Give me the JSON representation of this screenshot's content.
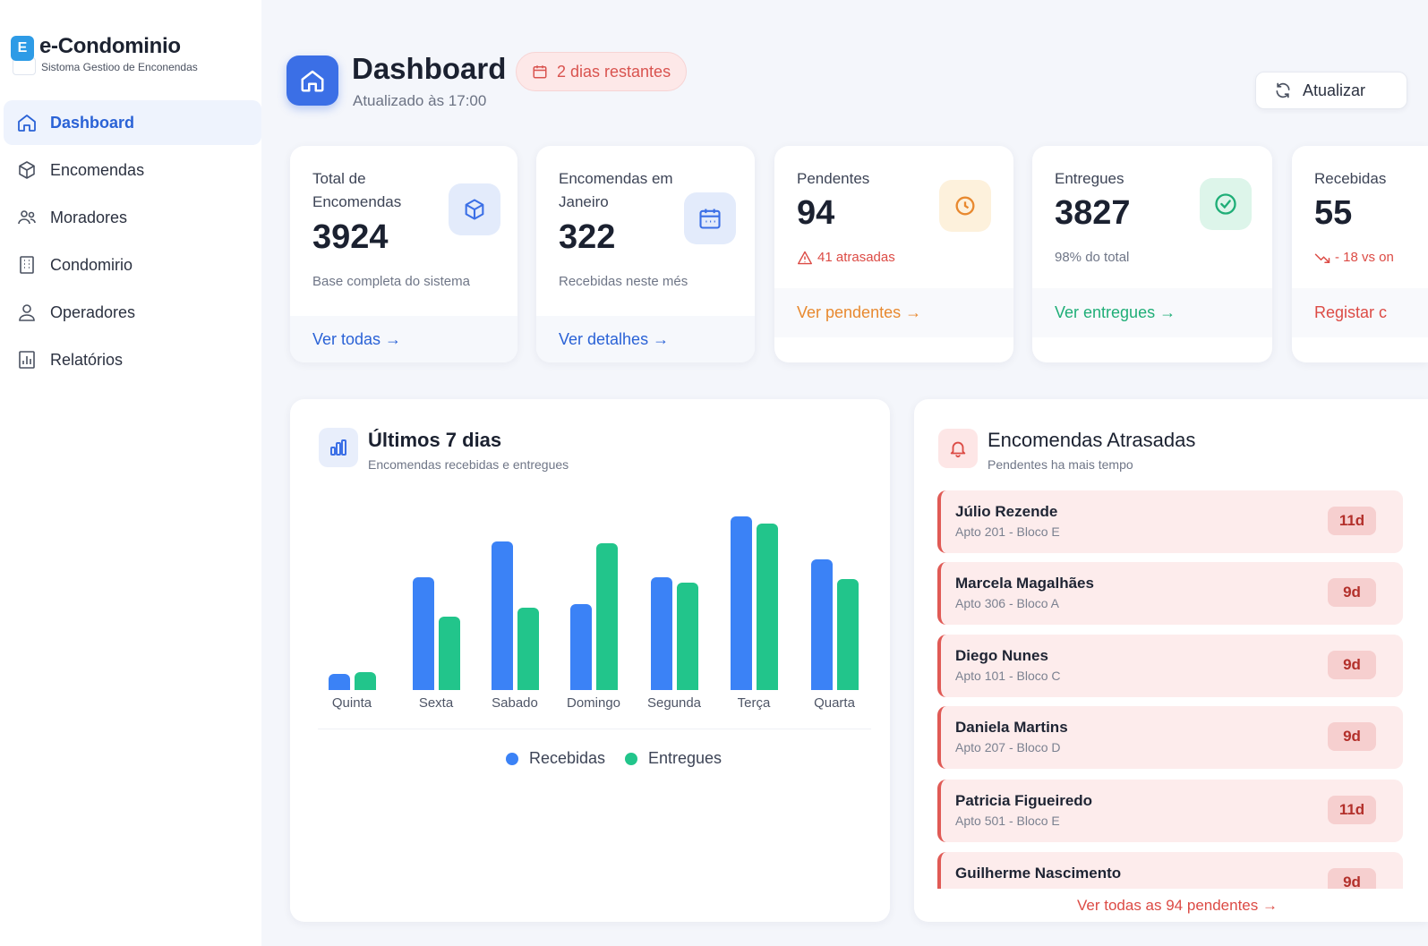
{
  "brand": {
    "logo_letter": "E",
    "title": "e-Condominio",
    "subtitle": "Sistoma Gestioo de Enconendas"
  },
  "nav": {
    "items": [
      {
        "label": "Dashboard",
        "icon": "home-icon",
        "active": true
      },
      {
        "label": "Encomendas",
        "icon": "package-icon",
        "active": false
      },
      {
        "label": "Moradores",
        "icon": "users-icon",
        "active": false
      },
      {
        "label": "Condomirio",
        "icon": "building-icon",
        "active": false
      },
      {
        "label": "Operadores",
        "icon": "user-icon",
        "active": false
      },
      {
        "label": "Relatórios",
        "icon": "report-icon",
        "active": false
      }
    ]
  },
  "header": {
    "title": "Dashboard",
    "updated": "Atualizado às 17:00",
    "days_badge": "2 dias restantes",
    "refresh_label": "Atualizar"
  },
  "stats": [
    {
      "label": "Total de Encomendas",
      "value": "3924",
      "desc": "Base completa do sistema",
      "link": "Ver todas →",
      "icon": "cube-icon"
    },
    {
      "label": "Encomendas em Janeiro",
      "value": "322",
      "desc": "Recebidas neste més",
      "link": "Ver detalhes →",
      "icon": "calendar-icon"
    },
    {
      "label": "Pendentes",
      "value": "94",
      "warning": "41 atrasadas",
      "link": "Ver pendentes →",
      "icon": "clock-icon"
    },
    {
      "label": "Entregues",
      "value": "3827",
      "desc": "98% do total",
      "link": "Ver entregues →",
      "icon": "check-circle-icon"
    },
    {
      "label": "Recebidas",
      "value": "55",
      "trend": "- 18 vs on",
      "link": "Registar c",
      "icon": "trend-down-icon"
    }
  ],
  "chart_panel": {
    "title": "Últimos 7 dias",
    "subtitle": "Encomendas recebidas e entregues"
  },
  "chart_data": {
    "type": "bar",
    "categories": [
      "Quinta",
      "Sexta",
      "Sabado",
      "Domingo",
      "Segunda",
      "Terça",
      "Quarta"
    ],
    "series": [
      {
        "name": "Recebidas",
        "color": "#3b82f6",
        "values": [
          9,
          63,
          83,
          48,
          63,
          97,
          73
        ]
      },
      {
        "name": "Entregues",
        "color": "#22c58b",
        "values": [
          10,
          41,
          46,
          82,
          60,
          93,
          62
        ]
      }
    ],
    "ylim": [
      0,
      100
    ],
    "grid": false,
    "legend": "bottom-center"
  },
  "overdue": {
    "title": "Encomendas Atrasadas",
    "subtitle": "Pendentes ha mais tempo",
    "items": [
      {
        "name": "Júlio Rezende",
        "apt": "Apto 201 - Bloco E",
        "days": "11d"
      },
      {
        "name": "Marcela Magalhães",
        "apt": "Apto 306 - Bloco A",
        "days": "9d"
      },
      {
        "name": "Diego Nunes",
        "apt": "Apto 101 - Bloco C",
        "days": "9d"
      },
      {
        "name": "Daniela Martins",
        "apt": "Apto 207 - Bloco D",
        "days": "9d"
      },
      {
        "name": "Patricia Figueiredo",
        "apt": "Apto 501 - Bloco E",
        "days": "11d"
      },
      {
        "name": "Guilherme Nascimento",
        "apt": "",
        "days": "9d"
      }
    ],
    "see_all": "Ver todas as 94 pendentes →"
  },
  "colors": {
    "primary": "#3b6fe6",
    "recebidas": "#3b82f6",
    "entregues": "#22c58b",
    "warning": "#e8892f",
    "danger": "#dc4b45",
    "success": "#1fae77"
  }
}
